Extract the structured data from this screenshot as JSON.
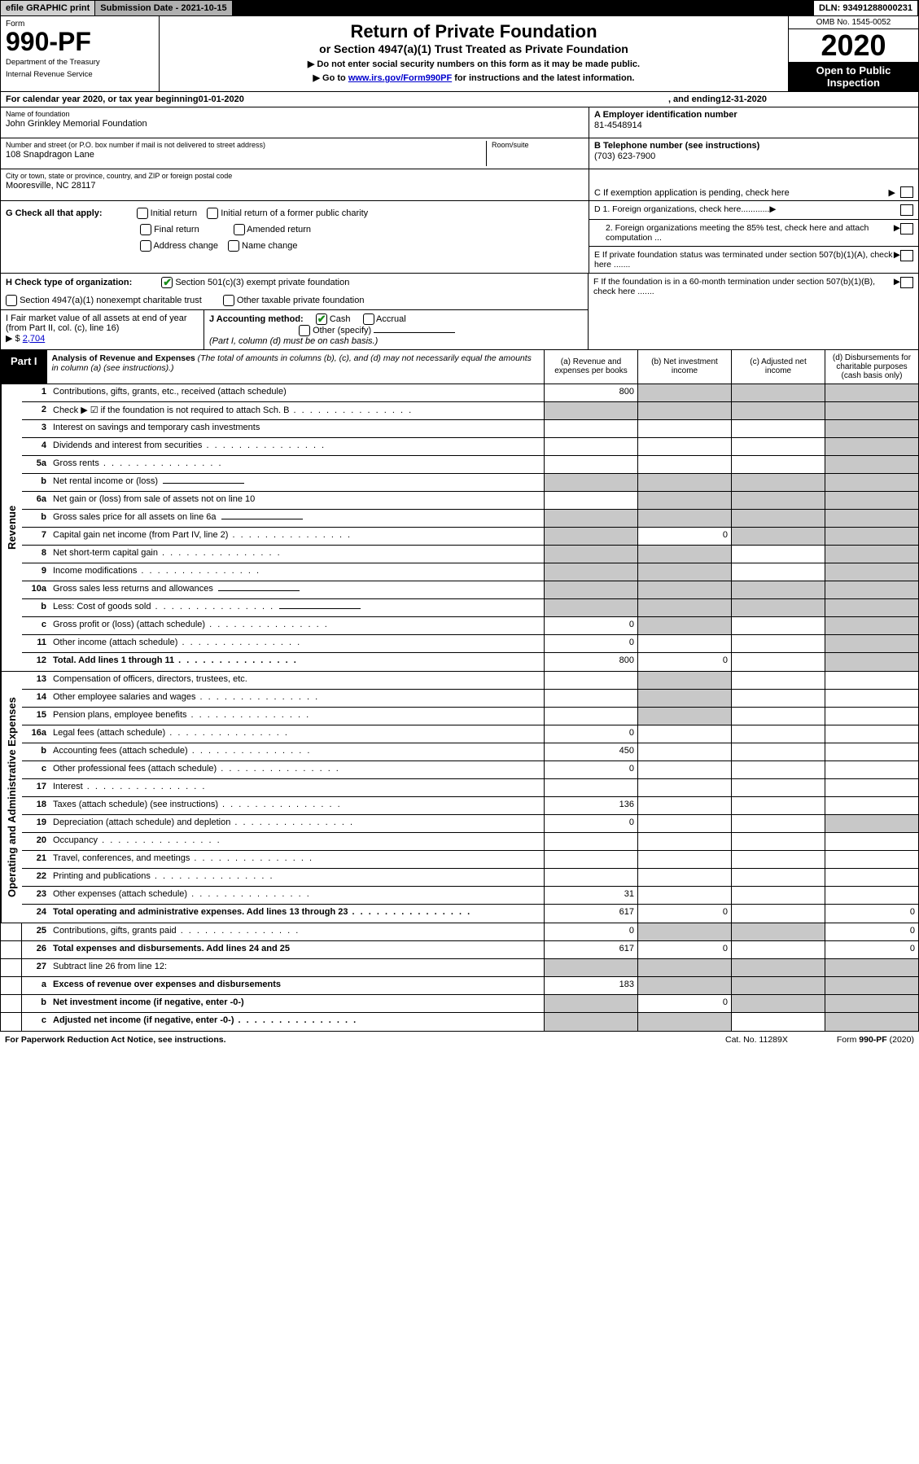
{
  "top": {
    "efile": "efile GRAPHIC print",
    "subdate_lbl": "Submission Date - ",
    "subdate": "2021-10-15",
    "dln_lbl": "DLN: ",
    "dln": "93491288000231"
  },
  "hdr": {
    "form_lbl": "Form",
    "form_no": "990-PF",
    "dept1": "Department of the Treasury",
    "dept2": "Internal Revenue Service",
    "title": "Return of Private Foundation",
    "subtitle": "or Section 4947(a)(1) Trust Treated as Private Foundation",
    "instr1": "▶ Do not enter social security numbers on this form as it may be made public.",
    "instr2": "▶ Go to ",
    "instr2_link": "www.irs.gov/Form990PF",
    "instr2_b": " for instructions and the latest information.",
    "omb": "OMB No. 1545-0052",
    "year": "2020",
    "inspect": "Open to Public Inspection"
  },
  "cal": {
    "a": "For calendar year 2020, or tax year beginning ",
    "b": "01-01-2020",
    "c": ", and ending ",
    "d": "12-31-2020"
  },
  "entity": {
    "name_lbl": "Name of foundation",
    "name": "John Grinkley Memorial Foundation",
    "addr_lbl": "Number and street (or P.O. box number if mail is not delivered to street address)",
    "addr": "108 Snapdragon Lane",
    "room_lbl": "Room/suite",
    "city_lbl": "City or town, state or province, country, and ZIP or foreign postal code",
    "city": "Mooresville, NC  28117",
    "ein_lbl": "A Employer identification number",
    "ein": "81-4548914",
    "tel_lbl": "B Telephone number (see instructions)",
    "tel": "(703) 623-7900",
    "c_lbl": "C If exemption application is pending, check here"
  },
  "g": {
    "lbl": "G Check all that apply:",
    "o1": "Initial return",
    "o2": "Initial return of a former public charity",
    "o3": "Final return",
    "o4": "Amended return",
    "o5": "Address change",
    "o6": "Name change"
  },
  "d": {
    "d1": "D 1. Foreign organizations, check here............",
    "d2": "2. Foreign organizations meeting the 85% test, check here and attach computation ...",
    "e": "E  If private foundation status was terminated under section 507(b)(1)(A), check here .......",
    "f": "F  If the foundation is in a 60-month termination under section 507(b)(1)(B), check here ......."
  },
  "h": {
    "lbl": "H Check type of organization:",
    "o1": "Section 501(c)(3) exempt private foundation",
    "o2": "Section 4947(a)(1) nonexempt charitable trust",
    "o3": "Other taxable private foundation"
  },
  "i": {
    "lbl": "I Fair market value of all assets at end of year (from Part II, col. (c), line 16)",
    "arrow": "▶ $",
    "val": "2,704"
  },
  "j": {
    "lbl": "J Accounting method:",
    "o1": "Cash",
    "o2": "Accrual",
    "o3": "Other (specify)",
    "note": "(Part I, column (d) must be on cash basis.)"
  },
  "part1": {
    "lbl": "Part I",
    "title": "Analysis of Revenue and Expenses",
    "desc": " (The total of amounts in columns (b), (c), and (d) may not necessarily equal the amounts in column (a) (see instructions).)",
    "ca": "(a)  Revenue and expenses per books",
    "cb": "(b)  Net investment income",
    "cc": "(c)  Adjusted net income",
    "cd": "(d)  Disbursements for charitable purposes (cash basis only)"
  },
  "side": {
    "rev": "Revenue",
    "exp": "Operating and Administrative Expenses"
  },
  "rows": [
    {
      "n": "1",
      "d": "Contributions, gifts, grants, etc., received (attach schedule)",
      "a": "800",
      "s": [
        false,
        true,
        true,
        true
      ]
    },
    {
      "n": "2",
      "d": "Check ▶ ☑ if the foundation is not required to attach Sch. B",
      "dots": true,
      "s": [
        true,
        true,
        true,
        true
      ]
    },
    {
      "n": "3",
      "d": "Interest on savings and temporary cash investments",
      "s": [
        false,
        false,
        false,
        true
      ]
    },
    {
      "n": "4",
      "d": "Dividends and interest from securities",
      "dots": true,
      "s": [
        false,
        false,
        false,
        true
      ]
    },
    {
      "n": "5a",
      "d": "Gross rents",
      "dots": true,
      "s": [
        false,
        false,
        false,
        true
      ]
    },
    {
      "n": "b",
      "d": "Net rental income or (loss)",
      "s": [
        true,
        true,
        true,
        true
      ],
      "inline": true
    },
    {
      "n": "6a",
      "d": "Net gain or (loss) from sale of assets not on line 10",
      "s": [
        false,
        true,
        true,
        true
      ]
    },
    {
      "n": "b",
      "d": "Gross sales price for all assets on line 6a",
      "s": [
        true,
        true,
        true,
        true
      ],
      "inline": true
    },
    {
      "n": "7",
      "d": "Capital gain net income (from Part IV, line 2)",
      "dots": true,
      "b": "0",
      "s": [
        true,
        false,
        true,
        true
      ]
    },
    {
      "n": "8",
      "d": "Net short-term capital gain",
      "dots": true,
      "s": [
        true,
        true,
        false,
        true
      ]
    },
    {
      "n": "9",
      "d": "Income modifications",
      "dots": true,
      "s": [
        true,
        true,
        false,
        true
      ]
    },
    {
      "n": "10a",
      "d": "Gross sales less returns and allowances",
      "s": [
        true,
        true,
        true,
        true
      ],
      "inline": true
    },
    {
      "n": "b",
      "d": "Less: Cost of goods sold",
      "dots": true,
      "s": [
        true,
        true,
        true,
        true
      ],
      "inline": true
    },
    {
      "n": "c",
      "d": "Gross profit or (loss) (attach schedule)",
      "dots": true,
      "a": "0",
      "s": [
        false,
        true,
        false,
        true
      ]
    },
    {
      "n": "11",
      "d": "Other income (attach schedule)",
      "dots": true,
      "a": "0",
      "s": [
        false,
        false,
        false,
        true
      ]
    },
    {
      "n": "12",
      "d": "Total. Add lines 1 through 11",
      "dots": true,
      "bold": true,
      "a": "800",
      "b": "0",
      "s": [
        false,
        false,
        false,
        true
      ]
    },
    {
      "n": "13",
      "d": "Compensation of officers, directors, trustees, etc.",
      "s": [
        false,
        true,
        false,
        false
      ]
    },
    {
      "n": "14",
      "d": "Other employee salaries and wages",
      "dots": true,
      "s": [
        false,
        true,
        false,
        false
      ]
    },
    {
      "n": "15",
      "d": "Pension plans, employee benefits",
      "dots": true,
      "s": [
        false,
        true,
        false,
        false
      ]
    },
    {
      "n": "16a",
      "d": "Legal fees (attach schedule)",
      "dots": true,
      "a": "0",
      "s": [
        false,
        false,
        false,
        false
      ]
    },
    {
      "n": "b",
      "d": "Accounting fees (attach schedule)",
      "dots": true,
      "a": "450",
      "s": [
        false,
        false,
        false,
        false
      ]
    },
    {
      "n": "c",
      "d": "Other professional fees (attach schedule)",
      "dots": true,
      "a": "0",
      "s": [
        false,
        false,
        false,
        false
      ]
    },
    {
      "n": "17",
      "d": "Interest",
      "dots": true,
      "s": [
        false,
        false,
        false,
        false
      ]
    },
    {
      "n": "18",
      "d": "Taxes (attach schedule) (see instructions)",
      "dots": true,
      "a": "136",
      "s": [
        false,
        false,
        false,
        false
      ]
    },
    {
      "n": "19",
      "d": "Depreciation (attach schedule) and depletion",
      "dots": true,
      "a": "0",
      "s": [
        false,
        false,
        false,
        true
      ]
    },
    {
      "n": "20",
      "d": "Occupancy",
      "dots": true,
      "s": [
        false,
        false,
        false,
        false
      ]
    },
    {
      "n": "21",
      "d": "Travel, conferences, and meetings",
      "dots": true,
      "s": [
        false,
        false,
        false,
        false
      ]
    },
    {
      "n": "22",
      "d": "Printing and publications",
      "dots": true,
      "s": [
        false,
        false,
        false,
        false
      ]
    },
    {
      "n": "23",
      "d": "Other expenses (attach schedule)",
      "dots": true,
      "a": "31",
      "s": [
        false,
        false,
        false,
        false
      ]
    },
    {
      "n": "24",
      "d": "Total operating and administrative expenses. Add lines 13 through 23",
      "dots": true,
      "bold": true,
      "a": "617",
      "b": "0",
      "dv": "0",
      "s": [
        false,
        false,
        false,
        false
      ]
    },
    {
      "n": "25",
      "d": "Contributions, gifts, grants paid",
      "dots": true,
      "a": "0",
      "dv": "0",
      "s": [
        false,
        true,
        true,
        false
      ]
    },
    {
      "n": "26",
      "d": "Total expenses and disbursements. Add lines 24 and 25",
      "bold": true,
      "a": "617",
      "b": "0",
      "dv": "0",
      "s": [
        false,
        false,
        false,
        false
      ]
    },
    {
      "n": "27",
      "d": "Subtract line 26 from line 12:",
      "s": [
        true,
        true,
        true,
        true
      ]
    },
    {
      "n": "a",
      "d": "Excess of revenue over expenses and disbursements",
      "bold": true,
      "a": "183",
      "s": [
        false,
        true,
        true,
        true
      ]
    },
    {
      "n": "b",
      "d": "Net investment income (if negative, enter -0-)",
      "bold": true,
      "b": "0",
      "s": [
        true,
        false,
        true,
        true
      ]
    },
    {
      "n": "c",
      "d": "Adjusted net income (if negative, enter -0-)",
      "bold": true,
      "dots": true,
      "s": [
        true,
        true,
        false,
        true
      ]
    }
  ],
  "footer": {
    "l": "For Paperwork Reduction Act Notice, see instructions.",
    "m": "Cat. No. 11289X",
    "r": "Form 990-PF (2020)"
  }
}
